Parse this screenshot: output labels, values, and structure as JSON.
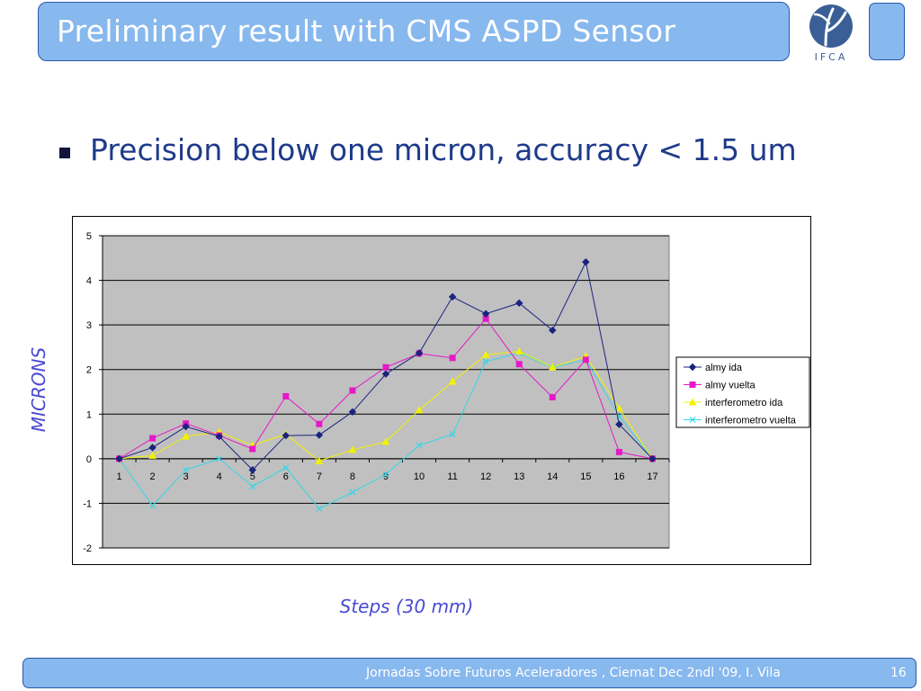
{
  "slide": {
    "title": "Preliminary result with CMS ASPD Sensor",
    "bullet": "Precision below one micron, accuracy < 1.5 um",
    "logo_text": "IFCA",
    "footer": "Jornadas Sobre Futuros Aceleradores ,  Ciemat Dec 2ndl  '09,   I. Vila",
    "page_number": "16"
  },
  "colors": {
    "accent_fill": "#87b8ee",
    "accent_border": "#2a58a8",
    "plot_area": "#c0c0c0",
    "axis_title": "#4a4ad6"
  },
  "chart_data": {
    "type": "line",
    "xlabel": "Steps (30 mm)",
    "ylabel": "MICRONS",
    "categories": [
      "1",
      "2",
      "3",
      "4",
      "5",
      "6",
      "7",
      "8",
      "9",
      "10",
      "11",
      "12",
      "13",
      "14",
      "15",
      "16",
      "17"
    ],
    "ylim": [
      -2,
      5
    ],
    "yticks": [
      5,
      4,
      3,
      2,
      1,
      0,
      -1,
      -2
    ],
    "grid": true,
    "legend_position": "right",
    "series": [
      {
        "name": "almy ida",
        "color": "#1a237e",
        "marker": "diamond",
        "values": [
          0,
          0.25,
          0.72,
          0.5,
          -0.25,
          0.52,
          0.53,
          1.05,
          1.9,
          2.37,
          3.63,
          3.25,
          3.49,
          2.88,
          4.41,
          0.77,
          0
        ]
      },
      {
        "name": "almy vuelta",
        "color": "#e619c8",
        "marker": "square",
        "values": [
          0,
          0.46,
          0.79,
          0.52,
          0.22,
          1.4,
          0.78,
          1.53,
          2.05,
          2.36,
          2.26,
          3.14,
          2.12,
          1.38,
          2.22,
          0.15,
          0
        ]
      },
      {
        "name": "interferometro ida",
        "color": "#f2f200",
        "marker": "triangle",
        "values": [
          0,
          0.07,
          0.5,
          0.6,
          0.3,
          0.55,
          -0.05,
          0.2,
          0.38,
          1.09,
          1.73,
          2.33,
          2.41,
          2.05,
          2.3,
          1.13,
          0
        ]
      },
      {
        "name": "interferometro vuelta",
        "color": "#33d6e6",
        "marker": "x",
        "values": [
          0,
          -1.05,
          -0.25,
          0,
          -0.62,
          -0.2,
          -1.12,
          -0.75,
          -0.35,
          0.3,
          0.55,
          2.18,
          2.37,
          2.04,
          2.22,
          0.95,
          0
        ]
      }
    ]
  }
}
